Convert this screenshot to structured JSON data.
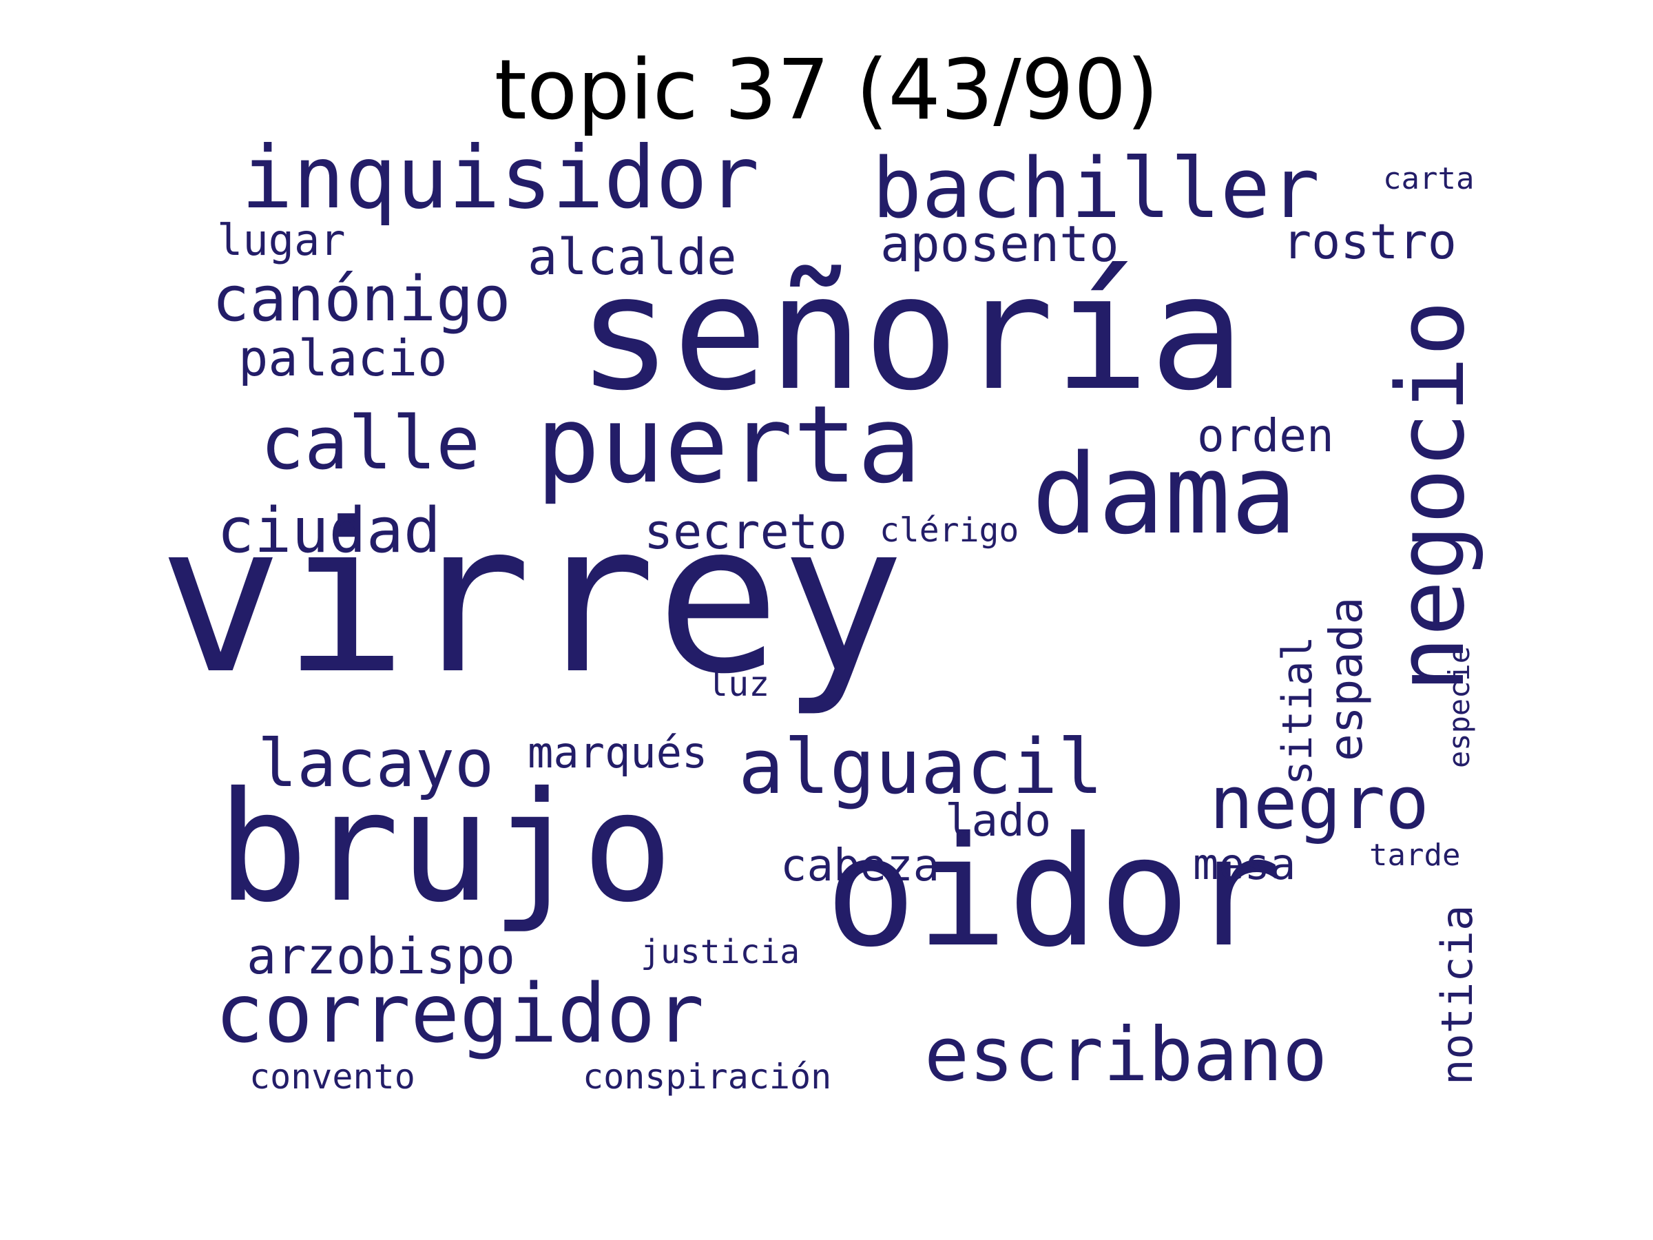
{
  "title": "topic 37 (43/90)",
  "word_color": "#231d68",
  "words": {
    "virrey": "virrey",
    "senoria": "señoría",
    "oidor": "oidor",
    "brujo": "brujo",
    "puerta": "puerta",
    "inquisidor": "inquisidor",
    "bachiller": "bachiller",
    "dama": "dama",
    "negocio": "negocio",
    "corregidor": "corregidor",
    "alguacil": "alguacil",
    "escribano": "escribano",
    "calle": "calle",
    "canonigo": "canónigo",
    "ciudad": "ciudad",
    "negro": "negro",
    "lacayo": "lacayo",
    "alcalde": "alcalde",
    "aposento": "aposento",
    "rostro": "rostro",
    "palacio": "palacio",
    "arzobispo": "arzobispo",
    "secreto": "secreto",
    "espada": "espada",
    "noticia": "noticia",
    "orden": "orden",
    "lugar": "lugar",
    "marques": "marqués",
    "cabeza": "cabeza",
    "lado": "lado",
    "sitial": "sitial",
    "mesa": "mesa",
    "carta": "carta",
    "clerigo": "clérigo",
    "luz": "luz",
    "especie": "especie",
    "tarde": "tarde",
    "justicia": "justicia",
    "convento": "convento",
    "conspiracion": "conspiración"
  }
}
